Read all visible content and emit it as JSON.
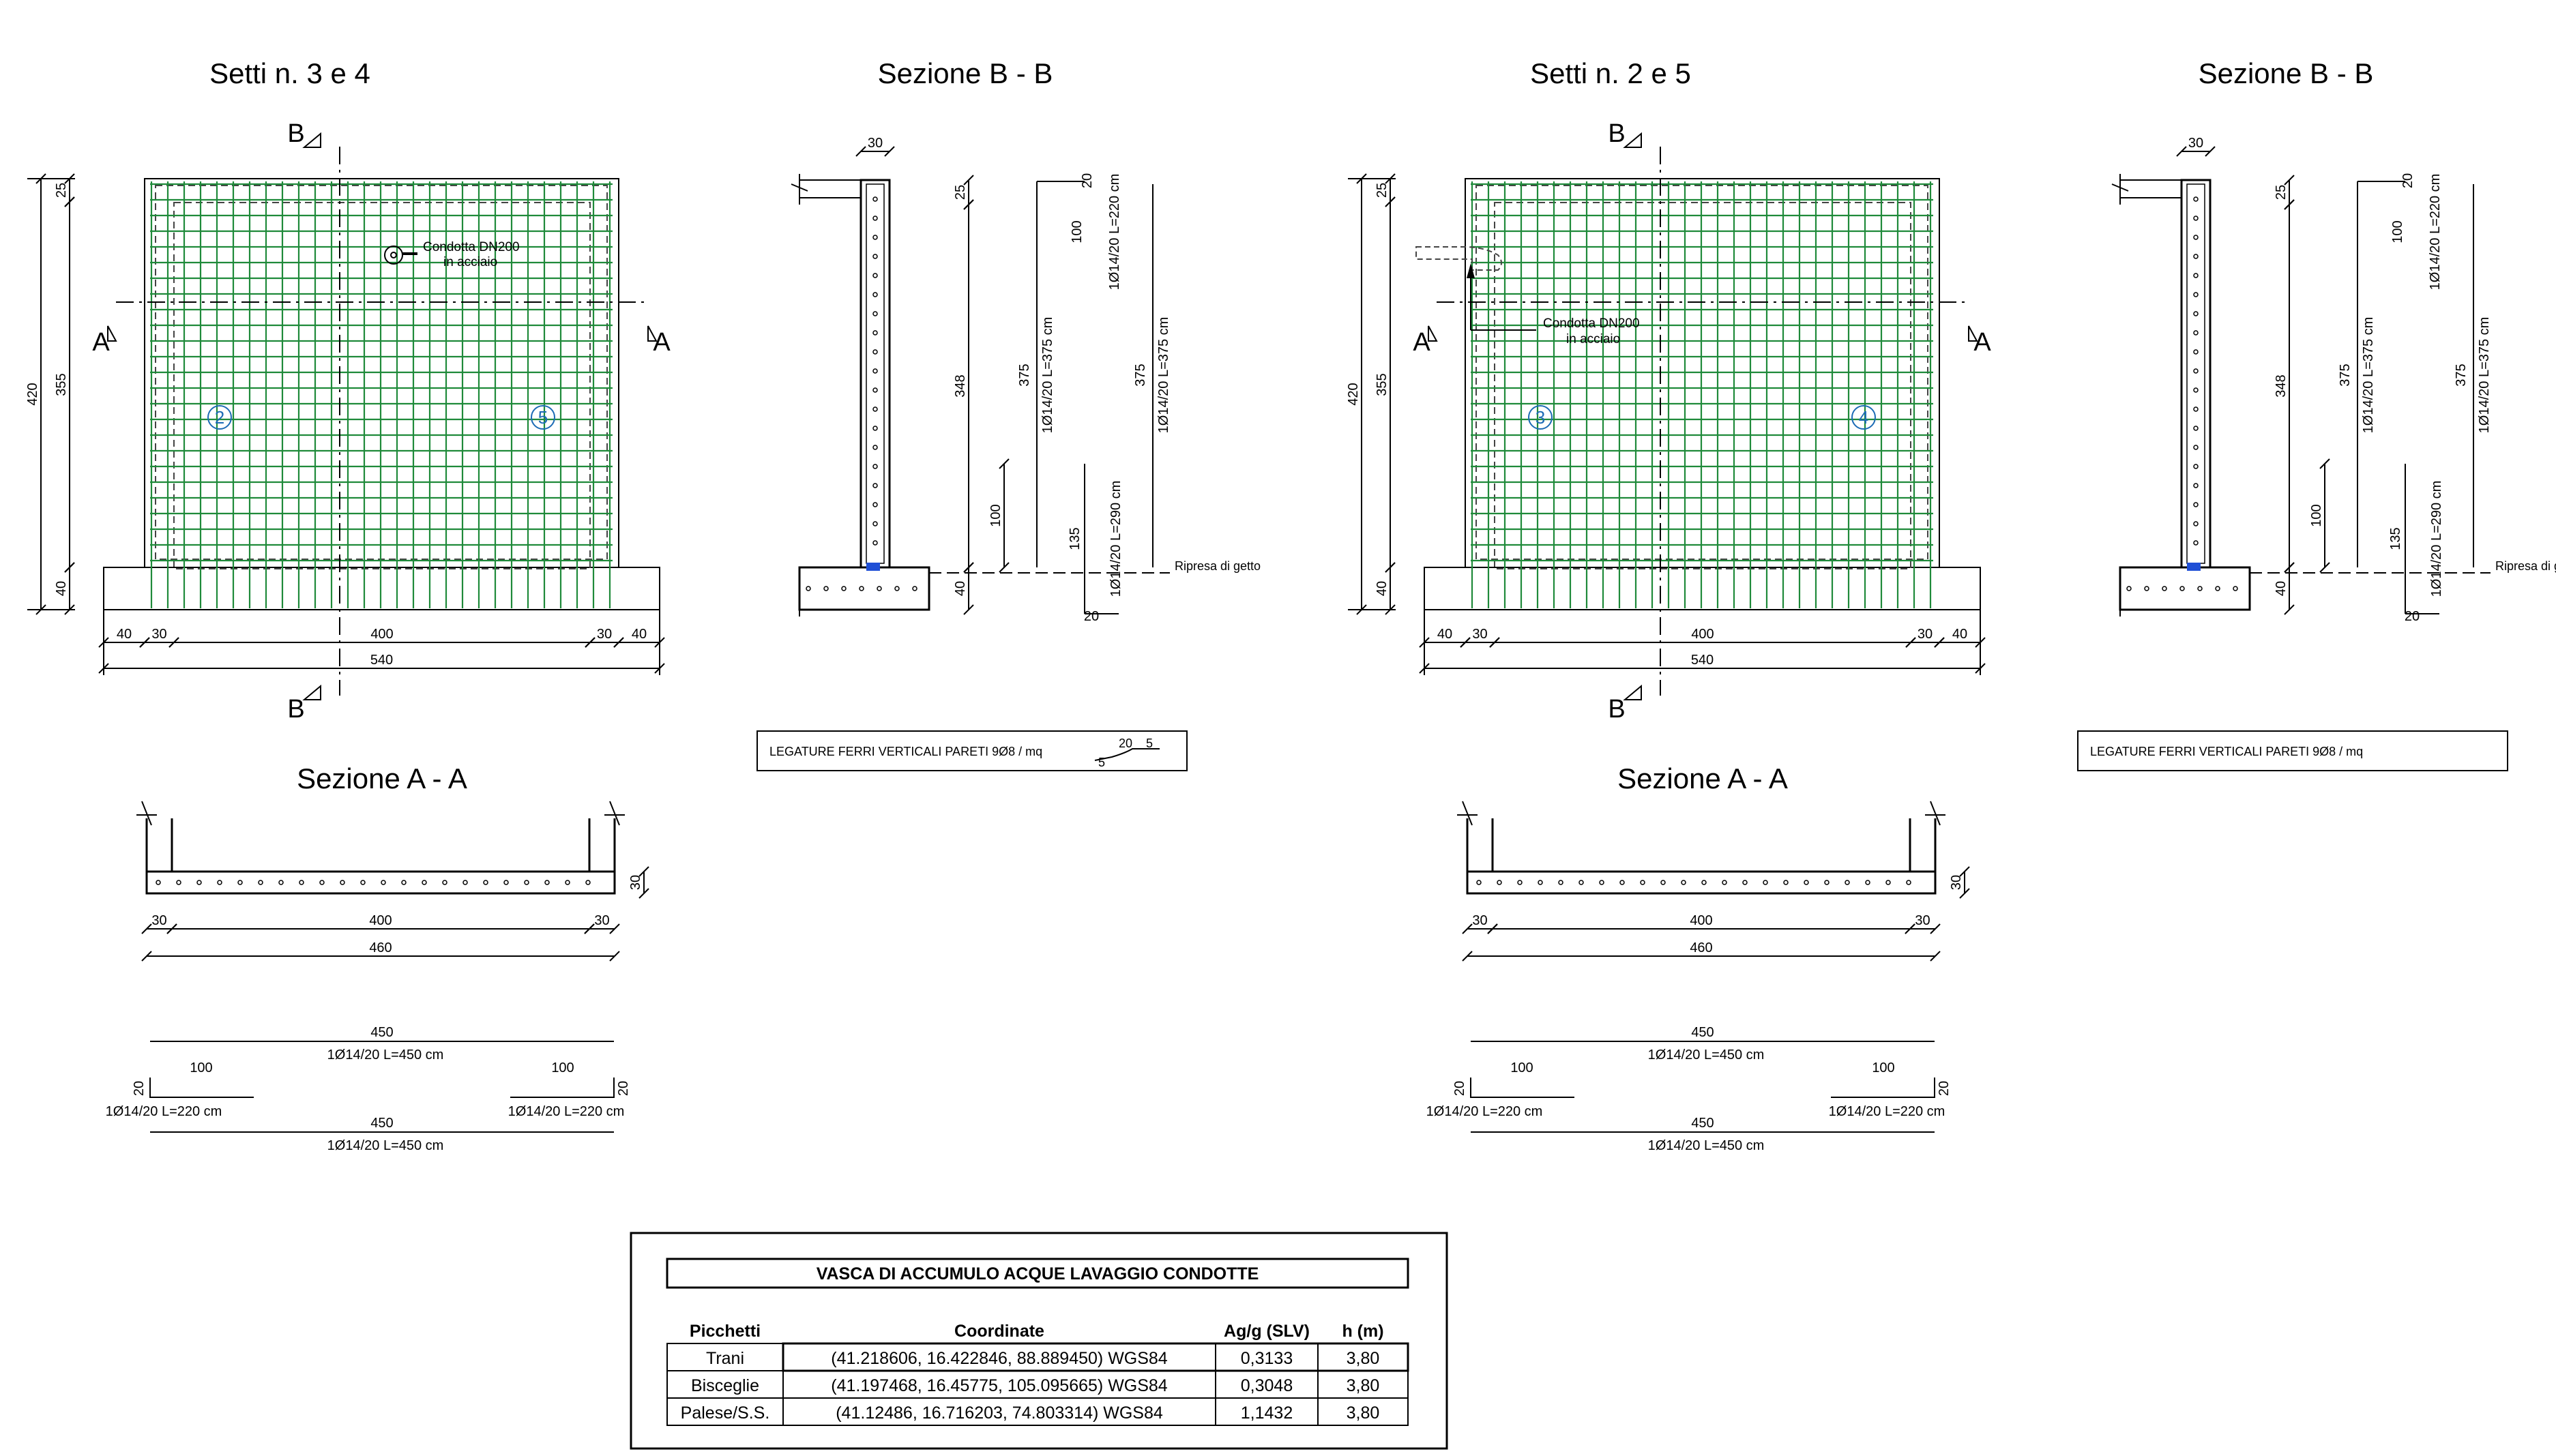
{
  "colors": {
    "rebar": "#1f8a3a",
    "water_bar": "#1f4fd6",
    "circle_label": "#1c6bb5",
    "line": "#000000"
  },
  "panels": [
    {
      "title": "Setti n. 3 e 4",
      "section_title": "Sezione B - B",
      "aa_title": "Sezione A - A",
      "section_letter_b": "B",
      "section_letter_a": "A",
      "wall_ids": [
        "2",
        "5"
      ],
      "pipe_note": [
        "Condotta DN200",
        "in acciaio"
      ],
      "dims": {
        "h_total": "420",
        "h_wall": "355",
        "h_base": "40",
        "top": "25",
        "bottom": [
          "40",
          "30",
          "400",
          "30",
          "40"
        ],
        "total": "540"
      },
      "bb_dims": {
        "top": "30",
        "upper": "25",
        "mid": "348",
        "low": "40"
      },
      "bar_schedule": {
        "bar1_top": "20",
        "bar1_len": "100",
        "bar1_label": "1Ø14/20 L=220 cm",
        "bar2_len": "375",
        "bar2_label": "1Ø14/20 L=375 cm",
        "bar3_len": "375",
        "bar3_label": "1Ø14/20 L=375 cm",
        "bar4_len": "135",
        "bar4_label": "1Ø14/20 L=290 cm",
        "bar4_bottom": "20",
        "lap": "100"
      },
      "ripresa": "Ripresa di getto",
      "legature": "LEGATURE FERRI VERTICALI PARETI 9Ø8 / mq",
      "hook": {
        "a": "20",
        "b": "5",
        "c": "5"
      },
      "aa_dims": {
        "left": "30",
        "mid": "400",
        "right": "30",
        "total": "460",
        "thick": "30"
      },
      "horiz_bars": {
        "top_len": "450",
        "top_label": "1Ø14/20  L=450 cm",
        "l_len": "100",
        "l_side": "20",
        "l_label": "1Ø14/20  L=220 cm",
        "r_len": "100",
        "r_side": "20",
        "r_label": "1Ø14/20  L=220 cm",
        "bot_len": "450",
        "bot_label": "1Ø14/20  L=450 cm"
      }
    },
    {
      "title": "Setti n. 2 e 5",
      "section_title": "Sezione B - B",
      "aa_title": "Sezione A - A",
      "section_letter_b": "B",
      "section_letter_a": "A",
      "wall_ids": [
        "3",
        "4"
      ],
      "pipe_note": [
        "Condotta DN200",
        "in acciaio"
      ],
      "dims": {
        "h_total": "420",
        "h_wall": "355",
        "h_base": "40",
        "top": "25",
        "bottom": [
          "40",
          "30",
          "400",
          "30",
          "40"
        ],
        "total": "540"
      },
      "bb_dims": {
        "top": "30",
        "upper": "25",
        "mid": "348",
        "low": "40"
      },
      "bar_schedule": {
        "bar1_top": "20",
        "bar1_len": "100",
        "bar1_label": "1Ø14/20 L=220 cm",
        "bar2_len": "375",
        "bar2_label": "1Ø14/20 L=375 cm",
        "bar3_len": "375",
        "bar3_label": "1Ø14/20 L=375 cm",
        "bar4_len": "135",
        "bar4_label": "1Ø14/20 L=290 cm",
        "bar4_bottom": "20",
        "lap": "100"
      },
      "ripresa": "Ripresa di ge",
      "legature": "LEGATURE FERRI VERTICALI PARETI 9Ø8 / mq",
      "hook": null,
      "aa_dims": {
        "left": "30",
        "mid": "400",
        "right": "30",
        "total": "460",
        "thick": "30"
      },
      "horiz_bars": {
        "top_len": "450",
        "top_label": "1Ø14/20  L=450 cm",
        "l_len": "100",
        "l_side": "20",
        "l_label": "1Ø14/20  L=220 cm",
        "r_len": "100",
        "r_side": "20",
        "r_label": "1Ø14/20  L=220 cm",
        "bot_len": "450",
        "bot_label": "1Ø14/20  L=450 cm"
      }
    }
  ],
  "table": {
    "title": "VASCA DI ACCUMULO ACQUE LAVAGGIO CONDOTTE",
    "headers": [
      "Picchetti",
      "Coordinate",
      "Ag/g (SLV)",
      "h (m)"
    ],
    "rows": [
      [
        "Trani",
        "(41.218606, 16.422846, 88.889450) WGS84",
        "0,3133",
        "3,80"
      ],
      [
        "Bisceglie",
        "(41.197468, 16.45775, 105.095665) WGS84",
        "0,3048",
        "3,80"
      ],
      [
        "Palese/S.S.",
        "(41.12486, 16.716203, 74.803314) WGS84",
        "1,1432",
        "3,80"
      ]
    ]
  }
}
